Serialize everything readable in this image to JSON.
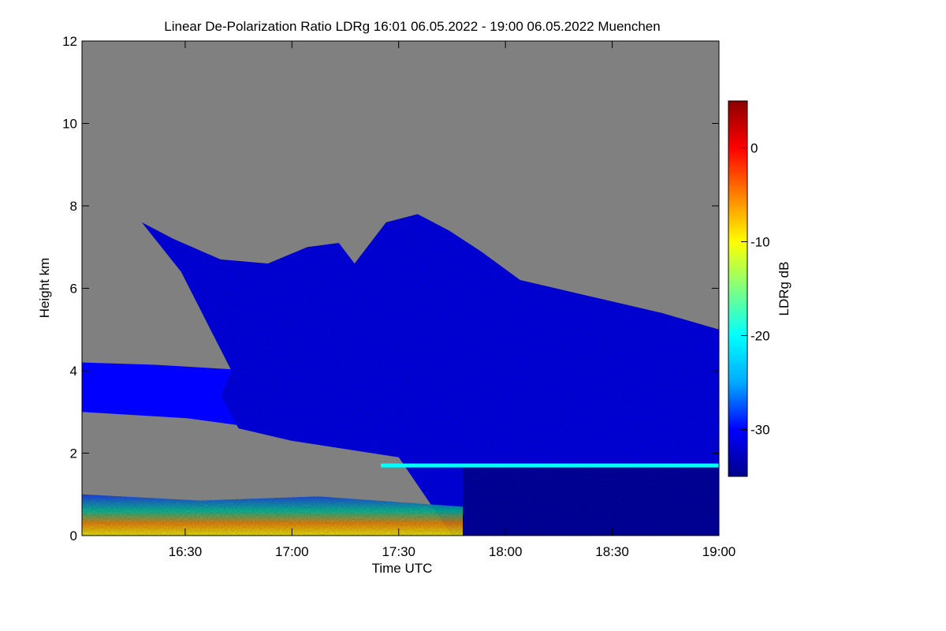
{
  "chart_data": {
    "type": "heatmap",
    "title": "Linear De-Polarization Ratio LDRg   16:01 06.05.2022 - 19:00 06.05.2022 Muenchen",
    "xlabel": "Time UTC",
    "ylabel": "Height km",
    "colorbar_label": "LDRg dB",
    "xlim": [
      "16:01",
      "19:00"
    ],
    "ylim": [
      0,
      12
    ],
    "x_ticks": [
      "16:30",
      "17:00",
      "17:30",
      "18:00",
      "18:30",
      "19:00"
    ],
    "y_ticks": [
      "0",
      "2",
      "4",
      "6",
      "8",
      "10",
      "12"
    ],
    "colorbar_range": [
      -35,
      5
    ],
    "colorbar_ticks": [
      "0",
      "-10",
      "-20",
      "-30"
    ],
    "colormap": [
      "#00008b",
      "#0000ff",
      "#00aaff",
      "#00ffff",
      "#80ff80",
      "#ffff00",
      "#ff8000",
      "#ff0000",
      "#8b0000"
    ],
    "nodata_color": "#808080",
    "features": [
      {
        "name": "main cloud layer",
        "ldr_db": -31,
        "time": [
          "16:20",
          "19:00"
        ],
        "base_km": [
          4.0,
          0.0
        ],
        "top_km": [
          7.5,
          5.0
        ]
      },
      {
        "name": "early cloud layer",
        "ldr_db": -30,
        "time": [
          "16:01",
          "17:00"
        ],
        "base_km": [
          3.0,
          2.5
        ],
        "top_km": [
          4.2,
          4.0
        ]
      },
      {
        "name": "melting layer",
        "ldr_db": -20,
        "time": [
          "17:25",
          "19:00"
        ],
        "height_km": 1.7
      },
      {
        "name": "boundary layer",
        "ldr_db": -8,
        "time": [
          "16:01",
          "17:48"
        ],
        "base_km": 0.0,
        "top_km": 1.0
      }
    ]
  }
}
